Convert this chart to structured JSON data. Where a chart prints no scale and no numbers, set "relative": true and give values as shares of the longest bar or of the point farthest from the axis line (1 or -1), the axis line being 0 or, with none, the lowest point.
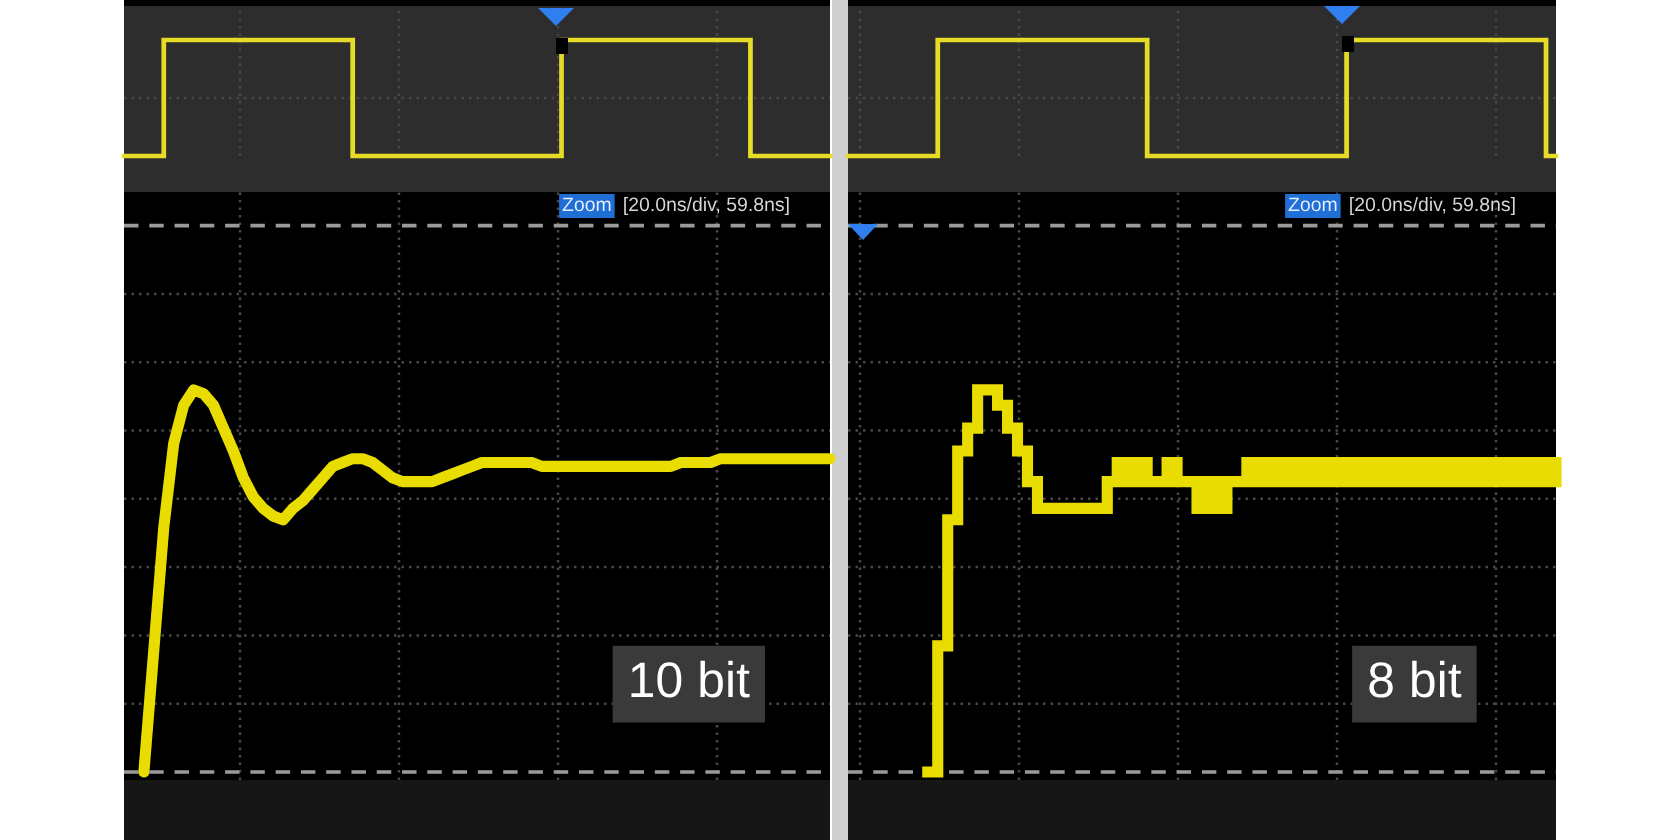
{
  "chart_data": [
    {
      "type": "step",
      "relative": true,
      "color": "#e6dc28",
      "grid": true,
      "categories": [
        null,
        null,
        null,
        null,
        null,
        null,
        null,
        null,
        null,
        null,
        null,
        null,
        null,
        null,
        null,
        null,
        null,
        null,
        null,
        null,
        null,
        null,
        null,
        null,
        null,
        null,
        null,
        null,
        null,
        null,
        null,
        null,
        null,
        null,
        null,
        null,
        null,
        null,
        null,
        null,
        null,
        null,
        null,
        null,
        null,
        null,
        null,
        null,
        null,
        null,
        null,
        null,
        null,
        null,
        null,
        null,
        null,
        null,
        null,
        null,
        null,
        null,
        null,
        null,
        null,
        null,
        null,
        null,
        null,
        null,
        null,
        null
      ],
      "values": [
        0,
        0,
        0,
        0,
        1,
        1,
        1,
        1,
        1,
        1,
        1,
        1,
        1,
        1,
        1,
        1,
        1,
        1,
        1,
        1,
        1,
        1,
        1,
        0,
        0,
        0,
        0,
        0,
        0,
        0,
        0,
        0,
        0,
        0,
        0,
        0,
        0,
        0,
        0,
        0,
        0,
        0,
        0,
        0,
        1,
        1,
        1,
        1,
        1,
        1,
        1,
        1,
        1,
        1,
        1,
        1,
        1,
        1,
        1,
        1,
        1,
        1,
        1,
        0,
        0,
        0,
        0,
        0,
        0,
        0,
        0,
        0
      ]
    },
    {
      "type": "step",
      "relative": true,
      "color": "#e6dc28",
      "grid": true,
      "categories": [
        null,
        null,
        null,
        null,
        null,
        null,
        null,
        null,
        null,
        null,
        null,
        null,
        null,
        null,
        null,
        null,
        null,
        null,
        null,
        null,
        null,
        null,
        null,
        null,
        null,
        null,
        null,
        null,
        null,
        null,
        null,
        null,
        null,
        null,
        null,
        null,
        null,
        null,
        null,
        null,
        null,
        null,
        null,
        null,
        null,
        null,
        null,
        null,
        null,
        null,
        null,
        null,
        null,
        null,
        null,
        null,
        null,
        null,
        null,
        null,
        null,
        null,
        null,
        null,
        null,
        null,
        null,
        null,
        null,
        null,
        null,
        null
      ],
      "values": [
        0,
        0,
        0,
        0,
        0,
        0,
        0,
        0,
        0,
        1,
        1,
        1,
        1,
        1,
        1,
        1,
        1,
        1,
        1,
        1,
        1,
        1,
        1,
        1,
        1,
        1,
        1,
        1,
        1,
        1,
        0,
        0,
        0,
        0,
        0,
        0,
        0,
        0,
        0,
        0,
        0,
        0,
        0,
        0,
        0,
        0,
        0,
        0,
        0,
        0,
        1,
        1,
        1,
        1,
        1,
        1,
        1,
        1,
        1,
        1,
        1,
        1,
        1,
        1,
        1,
        1,
        1,
        1,
        1,
        1,
        0,
        0
      ]
    },
    {
      "type": "line",
      "relative": true,
      "color": "#e8dc00",
      "grid": true,
      "categories": [
        null,
        null,
        null,
        null,
        null,
        null,
        null,
        null,
        null,
        null,
        null,
        null,
        null,
        null,
        null,
        null,
        null,
        null,
        null,
        null,
        null,
        null,
        null,
        null,
        null,
        null,
        null,
        null,
        null,
        null,
        null,
        null,
        null,
        null,
        null,
        null,
        null,
        null,
        null,
        null,
        null,
        null,
        null,
        null,
        null,
        null,
        null,
        null,
        null,
        null,
        null,
        null,
        null,
        null,
        null,
        null,
        null,
        null,
        null,
        null,
        null,
        null,
        null,
        null,
        null,
        null,
        null,
        null,
        null,
        null,
        null,
        null
      ],
      "values": [
        null,
        null,
        0,
        0.32,
        0.64,
        0.86,
        0.96,
        1,
        0.99,
        0.96,
        0.9,
        0.84,
        0.77,
        0.72,
        0.69,
        0.67,
        0.66,
        0.69,
        0.71,
        0.74,
        0.77,
        0.8,
        0.81,
        0.82,
        0.82,
        0.81,
        0.79,
        0.77,
        0.76,
        0.76,
        0.76,
        0.76,
        0.77,
        0.78,
        0.79,
        0.8,
        0.81,
        0.81,
        0.81,
        0.81,
        0.81,
        0.81,
        0.8,
        0.8,
        0.8,
        0.8,
        0.8,
        0.8,
        0.8,
        0.8,
        0.8,
        0.8,
        0.8,
        0.8,
        0.8,
        0.8,
        0.81,
        0.81,
        0.81,
        0.81,
        0.82,
        0.82,
        0.82,
        0.82,
        0.82,
        0.82,
        0.82,
        0.82,
        0.82,
        0.82,
        0.82,
        0.82
      ],
      "ref_lines": [
        {
          "axis": "y",
          "value": 0,
          "color": "#9a9a9a",
          "line_style": "dashed"
        },
        {
          "axis": "y",
          "value": 1.43,
          "color": "#9a9a9a",
          "line_style": "dashed"
        }
      ],
      "annotations": [
        "Zoom",
        "[20.0ns/div, 59.8ns]",
        "10 bit"
      ]
    },
    {
      "type": "step",
      "relative": true,
      "color": "#e8dc00",
      "grid": true,
      "categories": [
        null,
        null,
        null,
        null,
        null,
        null,
        null,
        null,
        null,
        null,
        null,
        null,
        null,
        null,
        null,
        null,
        null,
        null,
        null,
        null,
        null,
        null,
        null,
        null,
        null,
        null,
        null,
        null,
        null,
        null,
        null,
        null,
        null,
        null,
        null,
        null,
        null,
        null,
        null,
        null,
        null,
        null,
        null,
        null,
        null,
        null,
        null,
        null,
        null,
        null,
        null,
        null,
        null,
        null,
        null,
        null,
        null,
        null,
        null,
        null,
        null,
        null,
        null,
        null,
        null,
        null,
        null,
        null,
        null,
        null,
        null,
        null
      ],
      "values": [
        null,
        null,
        null,
        null,
        null,
        null,
        null,
        null,
        0,
        0.33,
        0.66,
        0.84,
        0.9,
        1,
        1,
        0.96,
        0.9,
        0.84,
        0.76,
        0.69,
        0.69,
        0.69,
        0.69,
        0.69,
        0.69,
        0.69,
        0.76,
        0.81,
        0.76,
        0.81,
        0.76,
        0.76,
        0.81,
        0.76,
        0.76,
        0.69,
        0.76,
        0.69,
        0.76,
        0.76,
        0.81,
        0.76,
        0.81,
        0.76,
        0.81,
        0.76,
        0.81,
        0.76,
        0.81,
        0.76,
        0.81,
        0.76,
        0.81,
        0.76,
        0.81,
        0.76,
        0.81,
        0.76,
        0.81,
        0.76,
        0.81,
        0.76,
        0.81,
        0.76,
        0.81,
        0.76,
        0.81,
        0.76,
        0.81,
        0.76,
        0.81,
        0.76
      ],
      "ref_lines": [
        {
          "axis": "y",
          "value": 0,
          "color": "#9a9a9a",
          "line_style": "dashed"
        },
        {
          "axis": "y",
          "value": 1.43,
          "color": "#9a9a9a",
          "line_style": "dashed"
        }
      ],
      "annotations": [
        "Zoom",
        "[20.0ns/div, 59.8ns]",
        "8 bit"
      ]
    }
  ]
}
